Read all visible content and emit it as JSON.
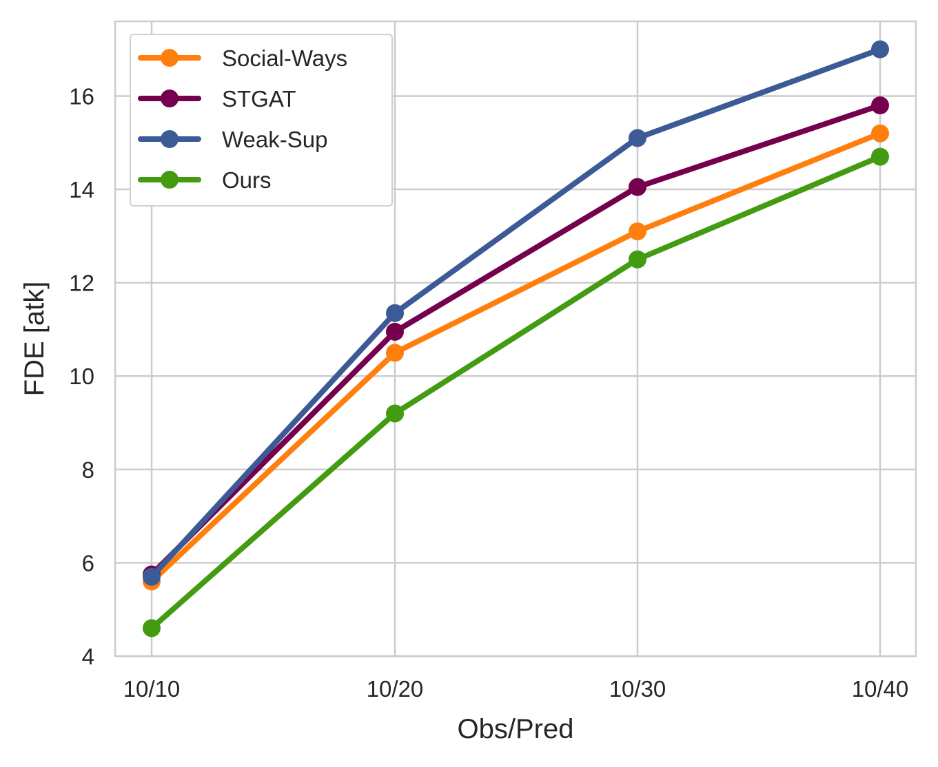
{
  "chart_data": {
    "type": "line",
    "title": "",
    "xlabel": "Obs/Pred",
    "ylabel": "FDE [atk]",
    "categories": [
      "10/10",
      "10/20",
      "10/30",
      "10/40"
    ],
    "yticks": [
      4,
      6,
      8,
      10,
      12,
      14,
      16
    ],
    "ylim": [
      4,
      17.6
    ],
    "grid": true,
    "legend_position": "top-left",
    "series": [
      {
        "name": "Social-Ways",
        "color": "#ff7f0e",
        "values": [
          5.6,
          10.5,
          13.1,
          15.2
        ]
      },
      {
        "name": "STGAT",
        "color": "#75004d",
        "values": [
          5.75,
          10.95,
          14.05,
          15.8
        ]
      },
      {
        "name": "Weak-Sup",
        "color": "#3c5a96",
        "values": [
          5.7,
          11.35,
          15.1,
          17.0
        ]
      },
      {
        "name": "Ours",
        "color": "#429b10",
        "values": [
          4.6,
          9.2,
          12.5,
          14.7
        ]
      }
    ]
  }
}
